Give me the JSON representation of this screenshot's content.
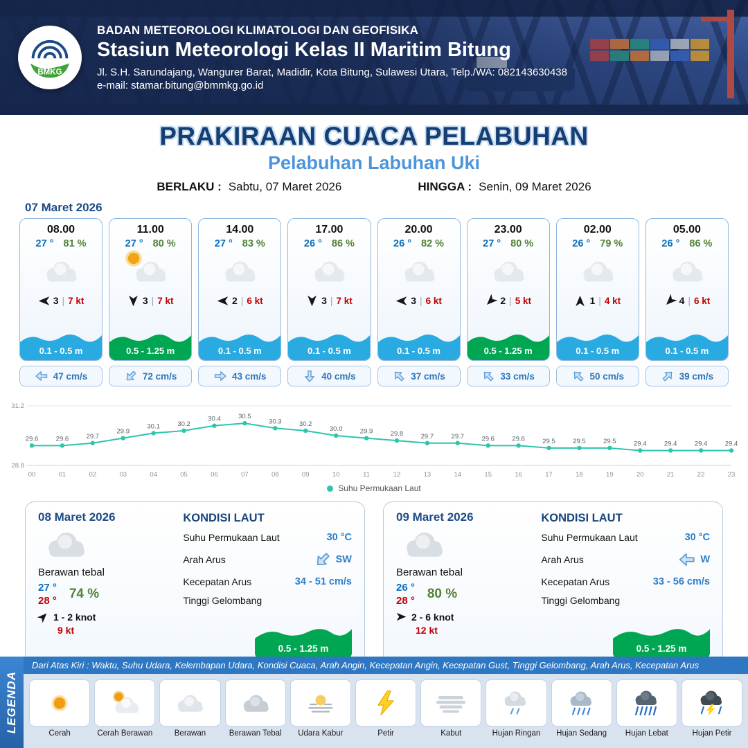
{
  "header": {
    "logo_text": "BMKG",
    "agency": "BADAN METEOROLOGI KLIMATOLOGI DAN GEOFISIKA",
    "station": "Stasiun Meteorologi Kelas II Maritim Bitung",
    "address": "Jl. S.H. Sarundajang, Wangurer Barat, Madidir, Kota Bitung, Sulawesi Utara, Telp./WA: 082143630438",
    "email": "e-mail: stamar.bitung@bmmkg.go.id"
  },
  "title": {
    "main": "PRAKIRAAN CUACA PELABUHAN",
    "subtitle": "Pelabuhan Labuhan Uki",
    "berlaku_label": "BERLAKU :",
    "berlaku_value": "Sabtu, 07 Maret 2026",
    "hingga_label": "HINGGA :",
    "hingga_value": "Senin, 09 Maret 2026"
  },
  "forecast_date": "07 Maret 2026",
  "hourly": [
    {
      "time": "08.00",
      "temp": "27 °",
      "humidity": "81 %",
      "weather": "berawan",
      "wind_deg": 180,
      "wind_val": "3",
      "wind_kt": "7 kt",
      "wave": "0.1 - 0.5 m",
      "wave_color": "#29abe2",
      "current": "47 cm/s",
      "current_deg": 180
    },
    {
      "time": "11.00",
      "temp": "27 °",
      "humidity": "80 %",
      "weather": "cerah-berawan",
      "wind_deg": 90,
      "wind_val": "3",
      "wind_kt": "7 kt",
      "wave": "0.5 - 1.25 m",
      "wave_color": "#00a651",
      "current": "72 cm/s",
      "current_deg": 135
    },
    {
      "time": "14.00",
      "temp": "27 °",
      "humidity": "83 %",
      "weather": "berawan",
      "wind_deg": 180,
      "wind_val": "2",
      "wind_kt": "6 kt",
      "wave": "0.1 - 0.5 m",
      "wave_color": "#29abe2",
      "current": "43 cm/s",
      "current_deg": 0
    },
    {
      "time": "17.00",
      "temp": "26 °",
      "humidity": "86 %",
      "weather": "berawan",
      "wind_deg": 90,
      "wind_val": "3",
      "wind_kt": "7 kt",
      "wave": "0.1 - 0.5 m",
      "wave_color": "#29abe2",
      "current": "40 cm/s",
      "current_deg": 90
    },
    {
      "time": "20.00",
      "temp": "26 °",
      "humidity": "82 %",
      "weather": "berawan",
      "wind_deg": 180,
      "wind_val": "3",
      "wind_kt": "6 kt",
      "wave": "0.1 - 0.5 m",
      "wave_color": "#29abe2",
      "current": "37 cm/s",
      "current_deg": 225
    },
    {
      "time": "23.00",
      "temp": "27 °",
      "humidity": "80 %",
      "weather": "berawan",
      "wind_deg": 135,
      "wind_val": "2",
      "wind_kt": "5 kt",
      "wave": "0.5 - 1.25 m",
      "wave_color": "#00a651",
      "current": "33 cm/s",
      "current_deg": 225
    },
    {
      "time": "02.00",
      "temp": "26 °",
      "humidity": "79 %",
      "weather": "berawan",
      "wind_deg": 270,
      "wind_val": "1",
      "wind_kt": "4 kt",
      "wave": "0.1 - 0.5 m",
      "wave_color": "#29abe2",
      "current": "50 cm/s",
      "current_deg": 225
    },
    {
      "time": "05.00",
      "temp": "26 °",
      "humidity": "86 %",
      "weather": "berawan",
      "wind_deg": 135,
      "wind_val": "4",
      "wind_kt": "6 kt",
      "wave": "0.1 - 0.5 m",
      "wave_color": "#29abe2",
      "current": "39 cm/s",
      "current_deg": 315
    }
  ],
  "chart_data": {
    "type": "line",
    "x": [
      "00",
      "01",
      "02",
      "03",
      "04",
      "05",
      "06",
      "07",
      "08",
      "09",
      "10",
      "11",
      "12",
      "13",
      "14",
      "15",
      "16",
      "17",
      "18",
      "19",
      "20",
      "21",
      "22",
      "23"
    ],
    "values": [
      29.6,
      29.6,
      29.7,
      29.9,
      30.1,
      30.2,
      30.4,
      30.5,
      30.3,
      30.2,
      30.0,
      29.9,
      29.8,
      29.7,
      29.7,
      29.6,
      29.6,
      29.5,
      29.5,
      29.5,
      29.4,
      29.4,
      29.4,
      29.4
    ],
    "ylim": [
      28.8,
      31.2
    ],
    "legend": "Suhu Permukaan Laut",
    "line_color": "#2cc5ae",
    "grid": false,
    "legend_position": "bottom"
  },
  "days": [
    {
      "date": "08 Maret 2026",
      "condition": "Berawan tebal",
      "temp_min": "27 °",
      "temp_max": "28 °",
      "humidity": "74 %",
      "wind": "1 - 2 knot",
      "wind_deg": 315,
      "gust": "9 kt",
      "sea": {
        "heading": "KONDISI LAUT",
        "sst_label": "Suhu Permukaan Laut",
        "sst": "30 °C",
        "dir_label": "Arah Arus",
        "dir": "SW",
        "dir_deg": 135,
        "speed_label": "Kecepatan Arus",
        "speed": "34 - 51 cm/s",
        "wave_label": "Tinggi Gelombang",
        "wave": "0.5 - 1.25 m"
      }
    },
    {
      "date": "09 Maret 2026",
      "condition": "Berawan tebal",
      "temp_min": "26 °",
      "temp_max": "28 °",
      "humidity": "80 %",
      "wind": "2 - 6 knot",
      "wind_deg": 0,
      "gust": "12 kt",
      "sea": {
        "heading": "KONDISI LAUT",
        "sst_label": "Suhu Permukaan Laut",
        "sst": "30 °C",
        "dir_label": "Arah Arus",
        "dir": "W",
        "dir_deg": 180,
        "speed_label": "Kecepatan Arus",
        "speed": "33 - 56 cm/s",
        "wave_label": "Tinggi Gelombang",
        "wave": "0.5 - 1.25 m"
      }
    }
  ],
  "legend": {
    "ribbon": "LEGENDA",
    "note": "Dari Atas Kiri : Waktu, Suhu Udara, Kelembapan Udara, Kondisi Cuaca, Arah Angin, Kecepatan Angin, Kecepatan Gust, Tinggi Gelombang, Arah Arus, Kecepatan Arus",
    "items": [
      {
        "label": "Cerah",
        "icon": "sun"
      },
      {
        "label": "Cerah Berawan",
        "icon": "sun-cloud"
      },
      {
        "label": "Berawan",
        "icon": "cloud"
      },
      {
        "label": "Berawan Tebal",
        "icon": "cloud-dark"
      },
      {
        "label": "Udara Kabur",
        "icon": "haze"
      },
      {
        "label": "Petir",
        "icon": "lightning"
      },
      {
        "label": "Kabut",
        "icon": "fog"
      },
      {
        "label": "Hujan Ringan",
        "icon": "rain-light"
      },
      {
        "label": "Hujan Sedang",
        "icon": "rain-medium"
      },
      {
        "label": "Hujan Lebat",
        "icon": "rain-heavy"
      },
      {
        "label": "Hujan Petir",
        "icon": "storm"
      }
    ]
  }
}
